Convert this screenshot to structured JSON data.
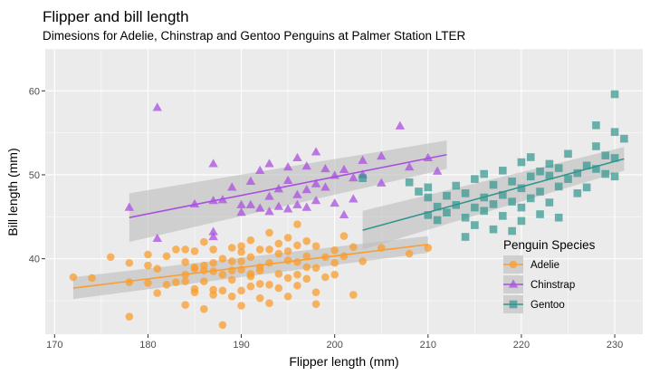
{
  "chart_data": {
    "type": "scatter",
    "title": "Flipper and bill length",
    "subtitle": "Dimesions for Adelie, Chinstrap and Gentoo Penguins at Palmer Station LTER",
    "xlabel": "Flipper length (mm)",
    "ylabel": "Bill length (mm)",
    "xlim": [
      169,
      233
    ],
    "ylim": [
      31,
      65
    ],
    "x_ticks": [
      170,
      180,
      190,
      200,
      210,
      220,
      230
    ],
    "y_ticks": [
      40,
      50,
      60
    ],
    "grid": true,
    "legend": {
      "title": "Penguin Species",
      "placement": "bottom-right"
    },
    "series": [
      {
        "name": "Adelie",
        "color": "#f99e2f",
        "shape": "circle",
        "fit": {
          "x": [
            172,
            210
          ],
          "y": [
            36.5,
            41.7
          ],
          "band_halfwidth": [
            1.3,
            1.0
          ]
        },
        "points": [
          [
            172,
            37.8
          ],
          [
            174,
            37.7
          ],
          [
            176,
            40.2
          ],
          [
            178,
            39.5
          ],
          [
            178,
            37.2
          ],
          [
            178,
            33.1
          ],
          [
            180,
            37.1
          ],
          [
            180,
            39.2
          ],
          [
            180,
            40.5
          ],
          [
            181,
            35.9
          ],
          [
            181,
            38.8
          ],
          [
            182,
            36.9
          ],
          [
            182,
            40.3
          ],
          [
            183,
            37.2
          ],
          [
            183,
            41.1
          ],
          [
            184,
            37.3
          ],
          [
            184,
            38.1
          ],
          [
            184,
            39.6
          ],
          [
            184,
            41.1
          ],
          [
            184,
            34.5
          ],
          [
            185,
            36.4
          ],
          [
            185,
            38.8
          ],
          [
            185,
            40.9
          ],
          [
            185,
            39.0
          ],
          [
            185,
            36.0
          ],
          [
            186,
            34.0
          ],
          [
            186,
            38.6
          ],
          [
            186,
            39.2
          ],
          [
            186,
            42.0
          ],
          [
            186,
            37.3
          ],
          [
            187,
            35.7
          ],
          [
            187,
            39.5
          ],
          [
            187,
            41.1
          ],
          [
            187,
            36.3
          ],
          [
            187,
            38.5
          ],
          [
            188,
            40.0
          ],
          [
            188,
            38.1
          ],
          [
            188,
            36.2
          ],
          [
            188,
            32.1
          ],
          [
            189,
            39.7
          ],
          [
            189,
            41.3
          ],
          [
            189,
            37.5
          ],
          [
            189,
            38.6
          ],
          [
            189,
            35.5
          ],
          [
            190,
            38.7
          ],
          [
            190,
            40.8
          ],
          [
            190,
            39.7
          ],
          [
            190,
            36.2
          ],
          [
            190,
            34.4
          ],
          [
            190,
            41.5
          ],
          [
            191,
            38.2
          ],
          [
            191,
            40.2
          ],
          [
            191,
            36.7
          ],
          [
            191,
            42.2
          ],
          [
            191,
            37.9
          ],
          [
            192,
            39.0
          ],
          [
            192,
            41.1
          ],
          [
            192,
            35.3
          ],
          [
            192,
            38.6
          ],
          [
            192,
            37.0
          ],
          [
            193,
            41.1
          ],
          [
            193,
            39.5
          ],
          [
            193,
            36.9
          ],
          [
            193,
            43.1
          ],
          [
            193,
            34.7
          ],
          [
            194,
            40.6
          ],
          [
            194,
            38.2
          ],
          [
            194,
            36.5
          ],
          [
            194,
            41.8
          ],
          [
            195,
            39.8
          ],
          [
            195,
            37.7
          ],
          [
            195,
            42.5
          ],
          [
            195,
            35.5
          ],
          [
            195,
            40.9
          ],
          [
            196,
            39.6
          ],
          [
            196,
            38.1
          ],
          [
            196,
            41.6
          ],
          [
            196,
            36.8
          ],
          [
            196,
            44.1
          ],
          [
            197,
            40.3
          ],
          [
            197,
            37.6
          ],
          [
            197,
            42.1
          ],
          [
            197,
            39.0
          ],
          [
            198,
            41.5
          ],
          [
            198,
            38.9
          ],
          [
            198,
            36.0
          ],
          [
            198,
            34.6
          ],
          [
            199,
            40.2
          ],
          [
            199,
            37.8
          ],
          [
            200,
            41.0
          ],
          [
            200,
            39.5
          ],
          [
            200,
            38.1
          ],
          [
            201,
            40.3
          ],
          [
            201,
            42.7
          ],
          [
            202,
            41.4
          ],
          [
            202,
            35.7
          ],
          [
            203,
            39.7
          ],
          [
            205,
            41.3
          ],
          [
            208,
            40.6
          ],
          [
            210,
            41.3
          ]
        ]
      },
      {
        "name": "Chinstrap",
        "color": "#a94fe0",
        "shape": "triangle",
        "fit": {
          "x": [
            178,
            212
          ],
          "y": [
            44.9,
            52.4
          ],
          "band_halfwidth": [
            2.9,
            1.7
          ]
        },
        "points": [
          [
            178,
            46.1
          ],
          [
            181,
            58.0
          ],
          [
            181,
            42.4
          ],
          [
            185,
            46.5
          ],
          [
            187,
            51.3
          ],
          [
            187,
            46.9
          ],
          [
            187,
            43.2
          ],
          [
            187,
            42.6
          ],
          [
            188,
            47.0
          ],
          [
            189,
            48.5
          ],
          [
            190,
            46.4
          ],
          [
            190,
            45.5
          ],
          [
            191,
            49.2
          ],
          [
            191,
            46.4
          ],
          [
            192,
            50.5
          ],
          [
            192,
            46.0
          ],
          [
            193,
            51.3
          ],
          [
            193,
            47.4
          ],
          [
            193,
            45.6
          ],
          [
            194,
            48.3
          ],
          [
            194,
            46.2
          ],
          [
            195,
            50.9
          ],
          [
            195,
            49.3
          ],
          [
            195,
            45.9
          ],
          [
            196,
            52.0
          ],
          [
            196,
            47.6
          ],
          [
            196,
            46.4
          ],
          [
            197,
            51.0
          ],
          [
            197,
            48.2
          ],
          [
            197,
            46.1
          ],
          [
            198,
            52.7
          ],
          [
            198,
            48.9
          ],
          [
            198,
            46.9
          ],
          [
            199,
            50.7
          ],
          [
            199,
            48.5
          ],
          [
            200,
            49.9
          ],
          [
            200,
            46.6
          ],
          [
            201,
            50.6
          ],
          [
            201,
            45.2
          ],
          [
            202,
            49.6
          ],
          [
            202,
            47.1
          ],
          [
            203,
            51.7
          ],
          [
            203,
            50.0
          ],
          [
            205,
            52.2
          ],
          [
            205,
            49.0
          ],
          [
            207,
            55.8
          ],
          [
            208,
            50.9
          ],
          [
            210,
            52.0
          ],
          [
            211,
            50.4
          ]
        ]
      },
      {
        "name": "Gentoo",
        "color": "#30958e",
        "shape": "square",
        "fit": {
          "x": [
            203,
            231
          ],
          "y": [
            43.4,
            51.9
          ],
          "band_halfwidth": [
            2.3,
            1.4
          ]
        },
        "points": [
          [
            203,
            49.6
          ],
          [
            208,
            49.1
          ],
          [
            209,
            48.0
          ],
          [
            210,
            45.2
          ],
          [
            210,
            47.3
          ],
          [
            210,
            48.5
          ],
          [
            211,
            44.6
          ],
          [
            211,
            46.2
          ],
          [
            212,
            47.5
          ],
          [
            212,
            45.5
          ],
          [
            213,
            48.7
          ],
          [
            213,
            46.4
          ],
          [
            214,
            44.9
          ],
          [
            214,
            47.8
          ],
          [
            214,
            42.6
          ],
          [
            215,
            46.1
          ],
          [
            215,
            49.5
          ],
          [
            215,
            44.0
          ],
          [
            216,
            47.3
          ],
          [
            216,
            50.1
          ],
          [
            216,
            45.7
          ],
          [
            217,
            46.5
          ],
          [
            217,
            48.8
          ],
          [
            217,
            43.5
          ],
          [
            218,
            47.6
          ],
          [
            218,
            50.5
          ],
          [
            218,
            45.1
          ],
          [
            219,
            49.2
          ],
          [
            219,
            46.8
          ],
          [
            219,
            43.3
          ],
          [
            220,
            48.4
          ],
          [
            220,
            51.5
          ],
          [
            220,
            46.1
          ],
          [
            220,
            44.5
          ],
          [
            221,
            49.8
          ],
          [
            221,
            47.2
          ],
          [
            221,
            52.1
          ],
          [
            222,
            50.4
          ],
          [
            222,
            48.0
          ],
          [
            222,
            45.3
          ],
          [
            223,
            49.9
          ],
          [
            223,
            51.3
          ],
          [
            223,
            46.7
          ],
          [
            224,
            48.6
          ],
          [
            224,
            50.8
          ],
          [
            224,
            44.9
          ],
          [
            225,
            49.5
          ],
          [
            225,
            52.5
          ],
          [
            226,
            50.2
          ],
          [
            226,
            47.8
          ],
          [
            227,
            51.1
          ],
          [
            227,
            48.5
          ],
          [
            228,
            50.7
          ],
          [
            228,
            53.4
          ],
          [
            228,
            55.9
          ],
          [
            229,
            50.1
          ],
          [
            229,
            52.3
          ],
          [
            230,
            49.8
          ],
          [
            230,
            52.0
          ],
          [
            230,
            55.1
          ],
          [
            230,
            59.6
          ],
          [
            231,
            54.3
          ]
        ]
      }
    ]
  }
}
